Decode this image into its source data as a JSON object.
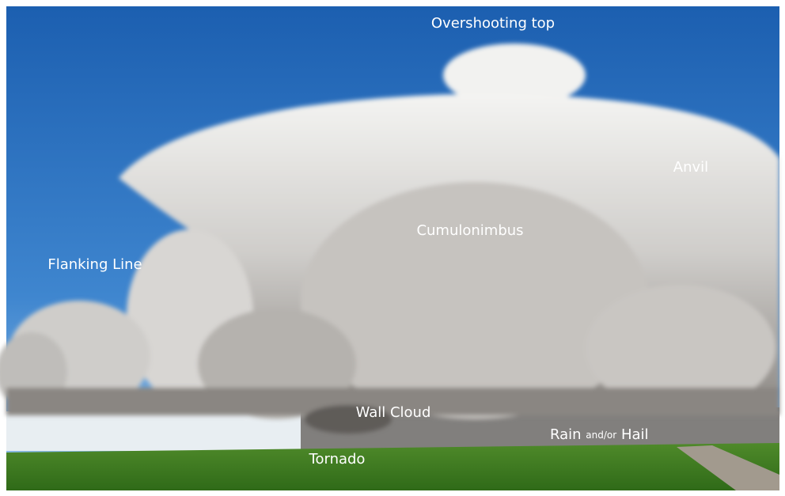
{
  "labels": {
    "overshooting_top": "Overshooting top",
    "anvil": "Anvil",
    "cumulonimbus": "Cumulonimbus",
    "flanking_line": "Flanking Line",
    "wall_cloud": "Wall Cloud",
    "tornado": "Tornado"
  },
  "rain_hail": [
    "Rain",
    "and/or",
    "Hail"
  ]
}
